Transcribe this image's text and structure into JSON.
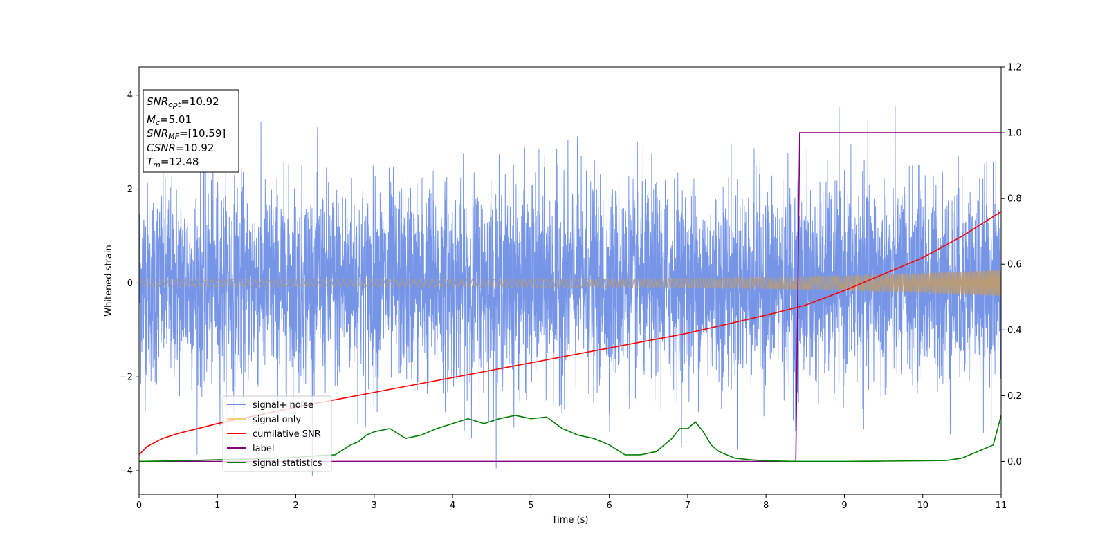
{
  "chart_data": {
    "type": "line",
    "xlabel": "Time (s)",
    "ylabel": "Whitened strain",
    "xlim": [
      0,
      11
    ],
    "ylim_left": [
      -4.5,
      4.6
    ],
    "ylim_right": [
      -0.1,
      1.2
    ],
    "x_ticks": [
      "0",
      "1",
      "2",
      "3",
      "4",
      "5",
      "6",
      "7",
      "8",
      "9",
      "10",
      "11"
    ],
    "y_left_ticks": [
      "−4",
      "−2",
      "0",
      "2",
      "4"
    ],
    "y_right_ticks": [
      "0.0",
      "0.2",
      "0.4",
      "0.6",
      "0.8",
      "1.0",
      "1.2"
    ],
    "grid": false,
    "legend_position": "lower-left",
    "info_box": {
      "snr_opt": "=10.92",
      "mc": "=5.01",
      "snr_mf": "=[10.59]",
      "csnr": "=10.92",
      "tm": "=12.48"
    },
    "colors": {
      "signal_noise": "#6f8fe6",
      "signal_only": "#f5cf82",
      "overlap": "#b99c77",
      "cumulative_snr": "#ff0000",
      "label": "#800080",
      "signal_statistics": "#008000"
    },
    "series": [
      {
        "name": "signal+ noise",
        "axis": "left",
        "description_range": [
          -4.1,
          4.2
        ],
        "x": [
          0,
          11
        ]
      },
      {
        "name": "signal only",
        "axis": "left",
        "amplitude": {
          "x": [
            0,
            1,
            2,
            3,
            4,
            5,
            6,
            7,
            8,
            9,
            10,
            11
          ],
          "y": [
            0.08,
            0.08,
            0.08,
            0.08,
            0.08,
            0.09,
            0.09,
            0.1,
            0.12,
            0.16,
            0.21,
            0.28
          ]
        }
      },
      {
        "name": "cumilative SNR",
        "axis": "right",
        "x": [
          0,
          0.1,
          0.3,
          0.5,
          1,
          1.5,
          2,
          3,
          4,
          5,
          6,
          7,
          8,
          8.5,
          9,
          9.5,
          10,
          10.5,
          11
        ],
        "y": [
          0.02,
          0.045,
          0.07,
          0.085,
          0.115,
          0.14,
          0.165,
          0.21,
          0.255,
          0.3,
          0.345,
          0.39,
          0.445,
          0.475,
          0.52,
          0.57,
          0.62,
          0.685,
          0.76
        ]
      },
      {
        "name": "label",
        "axis": "right",
        "x": [
          0,
          8.38,
          8.43,
          11
        ],
        "y": [
          0,
          0,
          1,
          1
        ]
      },
      {
        "name": "signal statistics",
        "axis": "right",
        "x": [
          0,
          0.5,
          1,
          1.5,
          2,
          2.3,
          2.5,
          2.7,
          2.8,
          2.9,
          3.0,
          3.2,
          3.4,
          3.6,
          3.8,
          4.0,
          4.2,
          4.4,
          4.6,
          4.8,
          5.0,
          5.2,
          5.4,
          5.6,
          5.8,
          6.0,
          6.2,
          6.4,
          6.6,
          6.8,
          6.9,
          7.0,
          7.1,
          7.2,
          7.3,
          7.4,
          7.6,
          7.8,
          8.0,
          8.4,
          9.0,
          9.5,
          10.0,
          10.3,
          10.5,
          10.7,
          10.9,
          11.0
        ],
        "y": [
          0.0,
          0.002,
          0.005,
          0.008,
          0.012,
          0.018,
          0.02,
          0.05,
          0.06,
          0.08,
          0.09,
          0.1,
          0.07,
          0.08,
          0.1,
          0.115,
          0.13,
          0.115,
          0.13,
          0.14,
          0.13,
          0.135,
          0.1,
          0.08,
          0.07,
          0.05,
          0.02,
          0.02,
          0.03,
          0.07,
          0.1,
          0.1,
          0.12,
          0.09,
          0.05,
          0.03,
          0.01,
          0.005,
          0.002,
          0.0,
          0.0,
          0.001,
          0.002,
          0.003,
          0.01,
          0.03,
          0.05,
          0.14
        ]
      }
    ]
  }
}
